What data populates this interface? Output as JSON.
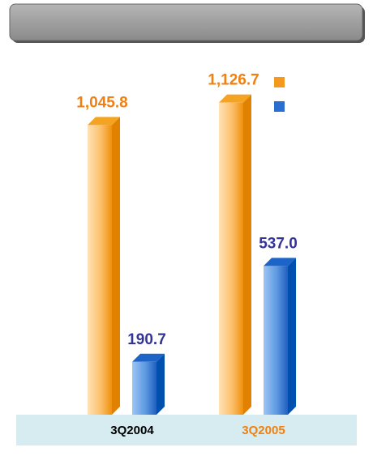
{
  "chart_data": {
    "type": "bar3d",
    "categories": [
      "3Q2004",
      "3Q2005"
    ],
    "category_colors": [
      "#000000",
      "#f08010"
    ],
    "series": [
      {
        "color": "#f39a1e",
        "label_color": "#f08010",
        "values": [
          1045.8,
          1126.7
        ],
        "value_labels": [
          "1,045.8",
          "1,126.7"
        ]
      },
      {
        "color": "#2a6fd0",
        "label_color": "#333399",
        "values": [
          190.7,
          537.0
        ],
        "value_labels": [
          "190.7",
          "537.0"
        ]
      }
    ]
  }
}
